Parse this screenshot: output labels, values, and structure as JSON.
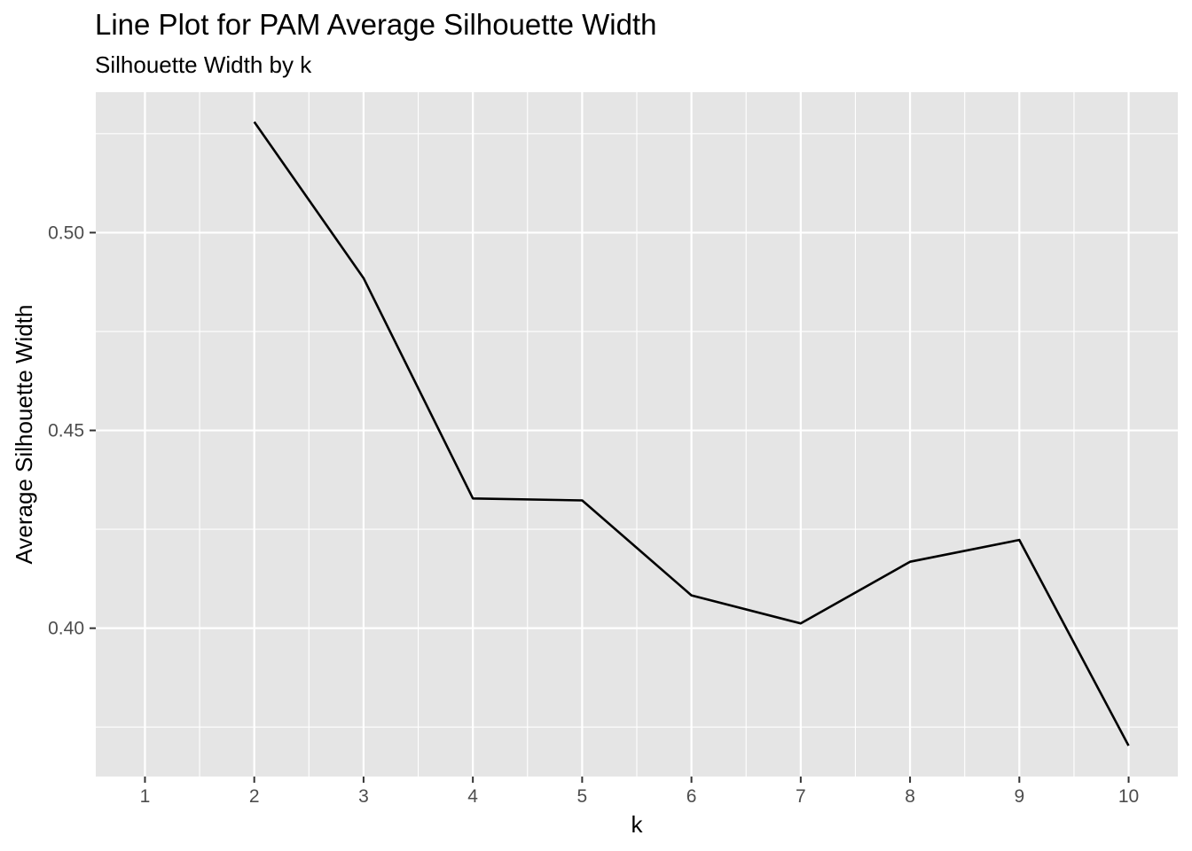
{
  "chart_data": {
    "type": "line",
    "title": "Line Plot for PAM Average Silhouette Width",
    "subtitle": "Silhouette Width by k",
    "xlabel": "k",
    "ylabel": "Average Silhouette Width",
    "x": [
      2,
      3,
      4,
      5,
      6,
      7,
      8,
      9,
      10
    ],
    "y": [
      0.528,
      0.4885,
      0.4328,
      0.4323,
      0.4083,
      0.4012,
      0.4168,
      0.4223,
      0.3703
    ],
    "x_ticks": [
      "1",
      "2",
      "3",
      "4",
      "5",
      "6",
      "7",
      "8",
      "9",
      "10"
    ],
    "y_ticks": [
      "0.40",
      "0.45",
      "0.50"
    ],
    "xlim": [
      0.55,
      10.45
    ],
    "ylim": [
      0.3625,
      0.5355
    ],
    "grid": true,
    "colors": {
      "panel": "#e5e5e5",
      "grid": "#ffffff",
      "line": "#000000",
      "tick_text": "#4d4d4d"
    }
  }
}
